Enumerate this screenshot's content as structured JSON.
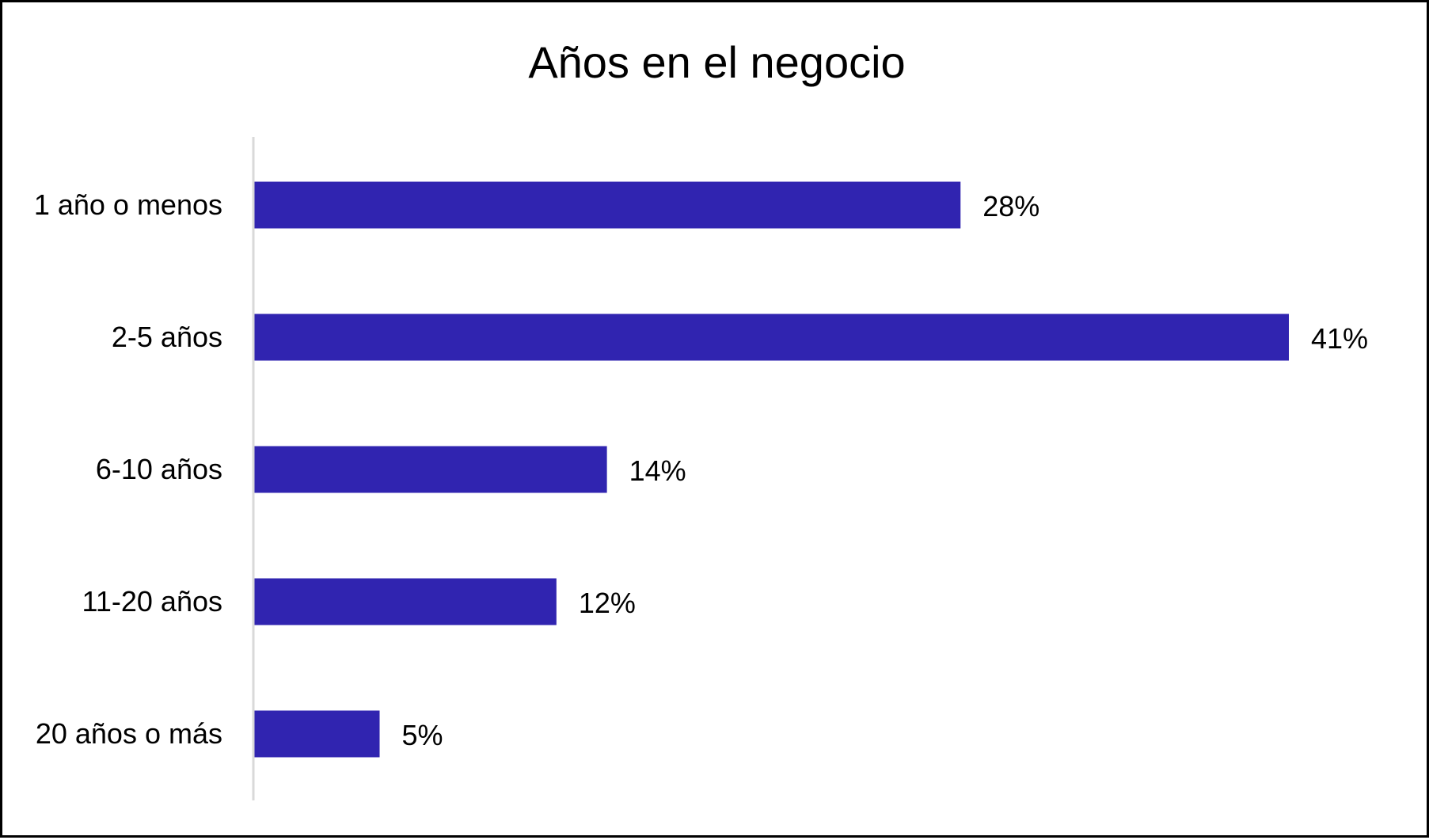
{
  "chart_data": {
    "type": "bar",
    "orientation": "horizontal",
    "title": "Años en el negocio",
    "categories": [
      "1 año o menos",
      "2-5 años",
      "6-10 años",
      "11-20 años",
      "20 años o más"
    ],
    "values": [
      28,
      41,
      14,
      12,
      5
    ],
    "value_labels": [
      "28%",
      "41%",
      "14%",
      "12%",
      "5%"
    ],
    "unit": "%",
    "xlabel": "",
    "ylabel": "",
    "xlim": [
      0,
      41
    ],
    "grid": false,
    "legend": "none",
    "bar_color": "#3024B0",
    "axis_color": "#D9D9D9"
  }
}
